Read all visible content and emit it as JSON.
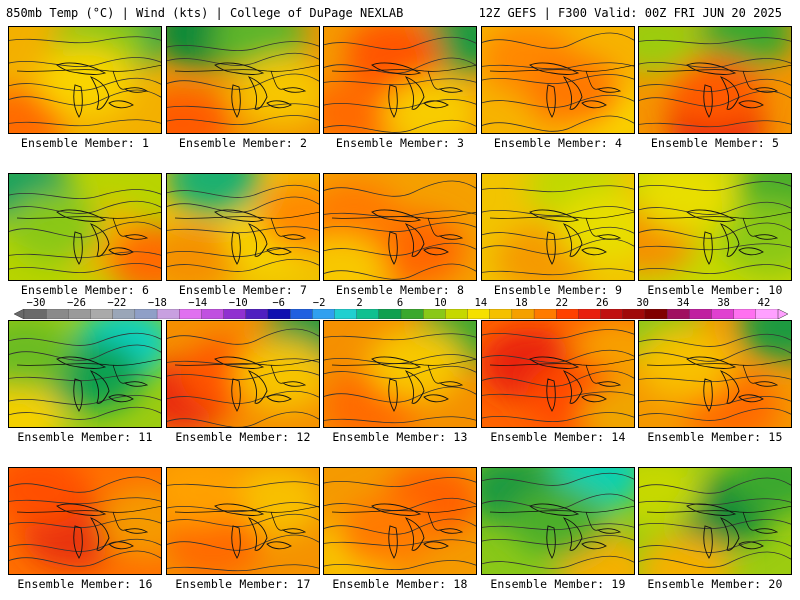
{
  "header": {
    "left": "850mb Temp (°C) | Wind (kts) | College of DuPage NEXLAB",
    "right": "12Z GEFS | F300 Valid: 00Z FRI JUN 20 2025"
  },
  "panels": [
    {
      "label": "Ensemble Member: 1",
      "base": "#f3b000",
      "blobs": [
        [
          "#13a34a",
          0.8,
          0.05
        ],
        [
          "#8ac818",
          0.6,
          0.15
        ],
        [
          "#ff6a00",
          0.05,
          0.9
        ],
        [
          "#f9d400",
          0.5,
          0.5
        ]
      ]
    },
    {
      "label": "Ensemble Member: 2",
      "base": "#f39400",
      "blobs": [
        [
          "#0f8a38",
          0.2,
          0.05
        ],
        [
          "#5bb52a",
          0.6,
          0.1
        ],
        [
          "#ff5a00",
          0.1,
          0.9
        ],
        [
          "#f7c600",
          0.75,
          0.6
        ]
      ]
    },
    {
      "label": "Ensemble Member: 3",
      "base": "#f59a00",
      "blobs": [
        [
          "#1f9a40",
          0.9,
          0.1
        ],
        [
          "#ff5500",
          0.45,
          0.25
        ],
        [
          "#ff6a00",
          0.2,
          0.8
        ],
        [
          "#f8cc00",
          0.7,
          0.8
        ]
      ]
    },
    {
      "label": "Ensemble Member: 4",
      "base": "#f7b300",
      "blobs": [
        [
          "#ff8800",
          0.3,
          0.3
        ],
        [
          "#f9d600",
          0.8,
          0.8
        ],
        [
          "#ff7800",
          0.6,
          0.6
        ]
      ]
    },
    {
      "label": "Ensemble Member: 5",
      "base": "#f59400",
      "blobs": [
        [
          "#3aa82e",
          0.7,
          0.05
        ],
        [
          "#9ccc10",
          0.1,
          0.1
        ],
        [
          "#e8200e",
          0.5,
          0.9
        ],
        [
          "#ff5a00",
          0.5,
          0.6
        ]
      ]
    },
    {
      "label": "Ensemble Member: 6",
      "base": "#b8d400",
      "blobs": [
        [
          "#10a060",
          0.1,
          0.15
        ],
        [
          "#f5b500",
          0.6,
          0.6
        ],
        [
          "#ff6a00",
          0.95,
          0.8
        ],
        [
          "#8ac818",
          0.3,
          0.5
        ]
      ]
    },
    {
      "label": "Ensemble Member: 7",
      "base": "#f0c000",
      "blobs": [
        [
          "#1fb070",
          0.3,
          0.05
        ],
        [
          "#f59000",
          0.15,
          0.8
        ],
        [
          "#f6d600",
          0.7,
          0.6
        ],
        [
          "#ff8a00",
          0.9,
          0.4
        ]
      ]
    },
    {
      "label": "Ensemble Member: 8",
      "base": "#f5a000",
      "blobs": [
        [
          "#ff6600",
          0.6,
          0.7
        ],
        [
          "#ff7a00",
          0.2,
          0.4
        ],
        [
          "#f8c800",
          0.1,
          0.9
        ]
      ]
    },
    {
      "label": "Ensemble Member: 9",
      "base": "#f2c400",
      "blobs": [
        [
          "#c0d800",
          0.6,
          0.1
        ],
        [
          "#f59a00",
          0.4,
          0.8
        ],
        [
          "#e8de00",
          0.8,
          0.5
        ]
      ]
    },
    {
      "label": "Ensemble Member: 10",
      "base": "#c6d800",
      "blobs": [
        [
          "#4cae2a",
          0.95,
          0.1
        ],
        [
          "#f59000",
          0.05,
          0.6
        ],
        [
          "#e8de00",
          0.3,
          0.2
        ],
        [
          "#8ac818",
          0.85,
          0.6
        ]
      ]
    },
    {
      "label": "Ensemble Member: 11",
      "base": "#9ccc10",
      "blobs": [
        [
          "#10d0c0",
          0.75,
          0.2
        ],
        [
          "#10a050",
          0.55,
          0.5
        ],
        [
          "#f5d000",
          0.05,
          0.9
        ],
        [
          "#6cbc20",
          0.1,
          0.3
        ]
      ]
    },
    {
      "label": "Ensemble Member: 12",
      "base": "#f59000",
      "blobs": [
        [
          "#1a9a40",
          0.95,
          0.1
        ],
        [
          "#e82a10",
          0.1,
          0.7
        ],
        [
          "#ff5500",
          0.4,
          0.5
        ],
        [
          "#f7c400",
          0.75,
          0.5
        ]
      ]
    },
    {
      "label": "Ensemble Member: 13",
      "base": "#f59000",
      "blobs": [
        [
          "#3aa82e",
          0.9,
          0.1
        ],
        [
          "#ff6a00",
          0.3,
          0.8
        ],
        [
          "#f8c800",
          0.6,
          0.4
        ]
      ]
    },
    {
      "label": "Ensemble Member: 14",
      "base": "#ff6400",
      "blobs": [
        [
          "#e8200e",
          0.3,
          0.4
        ],
        [
          "#f7a000",
          0.9,
          0.3
        ],
        [
          "#ff4a00",
          0.6,
          0.7
        ],
        [
          "#f0a500",
          0.95,
          0.9
        ]
      ]
    },
    {
      "label": "Ensemble Member: 15",
      "base": "#f59800",
      "blobs": [
        [
          "#1a9a40",
          0.95,
          0.05
        ],
        [
          "#8ac818",
          0.1,
          0.05
        ],
        [
          "#ff6a00",
          0.6,
          0.8
        ],
        [
          "#f8c000",
          0.3,
          0.4
        ]
      ]
    },
    {
      "label": "Ensemble Member: 16",
      "base": "#ff7000",
      "blobs": [
        [
          "#e8300e",
          0.4,
          0.6
        ],
        [
          "#ff5000",
          0.2,
          0.2
        ],
        [
          "#f59a00",
          0.9,
          0.5
        ]
      ]
    },
    {
      "label": "Ensemble Member: 17",
      "base": "#f59200",
      "blobs": [
        [
          "#f8c000",
          0.7,
          0.3
        ],
        [
          "#ff6a00",
          0.3,
          0.7
        ],
        [
          "#ffa000",
          0.2,
          0.2
        ]
      ]
    },
    {
      "label": "Ensemble Member: 18",
      "base": "#f59a00",
      "blobs": [
        [
          "#ff6000",
          0.7,
          0.3
        ],
        [
          "#f8c800",
          0.2,
          0.8
        ],
        [
          "#ff7a00",
          0.4,
          0.6
        ]
      ]
    },
    {
      "label": "Ensemble Member: 19",
      "base": "#8ac818",
      "blobs": [
        [
          "#10d0b0",
          0.75,
          0.05
        ],
        [
          "#1a9a40",
          0.2,
          0.2
        ],
        [
          "#f5b000",
          0.8,
          0.95
        ],
        [
          "#4cae2a",
          0.5,
          0.5
        ]
      ]
    },
    {
      "label": "Ensemble Member: 20",
      "base": "#9ccc10",
      "blobs": [
        [
          "#0f8a38",
          0.55,
          0.4
        ],
        [
          "#3aa82e",
          0.9,
          0.1
        ],
        [
          "#f5b000",
          0.3,
          0.95
        ],
        [
          "#c6d800",
          0.1,
          0.2
        ]
      ]
    }
  ],
  "colorbar": {
    "colors": [
      "#6a6a6a",
      "#8a8a8a",
      "#9a9a9a",
      "#aaaaaa",
      "#9aa6b8",
      "#8f9fc7",
      "#c8a0e0",
      "#e070f0",
      "#c050e0",
      "#9030d0",
      "#5020c0",
      "#1010b0",
      "#2060e0",
      "#30a0f0",
      "#20d0d0",
      "#10c090",
      "#10a050",
      "#3aa82e",
      "#8ac818",
      "#c6d800",
      "#f5e000",
      "#f5c000",
      "#f5a000",
      "#ff7a00",
      "#ff4000",
      "#e8200e",
      "#c01010",
      "#a00a0a",
      "#800000",
      "#a01060",
      "#c020a0",
      "#e040d0",
      "#ff70f0",
      "#ffa0ff"
    ],
    "ticks": [
      "−30",
      "−26",
      "−22",
      "−18",
      "−14",
      "−10",
      "−6",
      "−2",
      "2",
      "6",
      "10",
      "14",
      "18",
      "22",
      "26",
      "30",
      "34",
      "38",
      "42"
    ]
  }
}
